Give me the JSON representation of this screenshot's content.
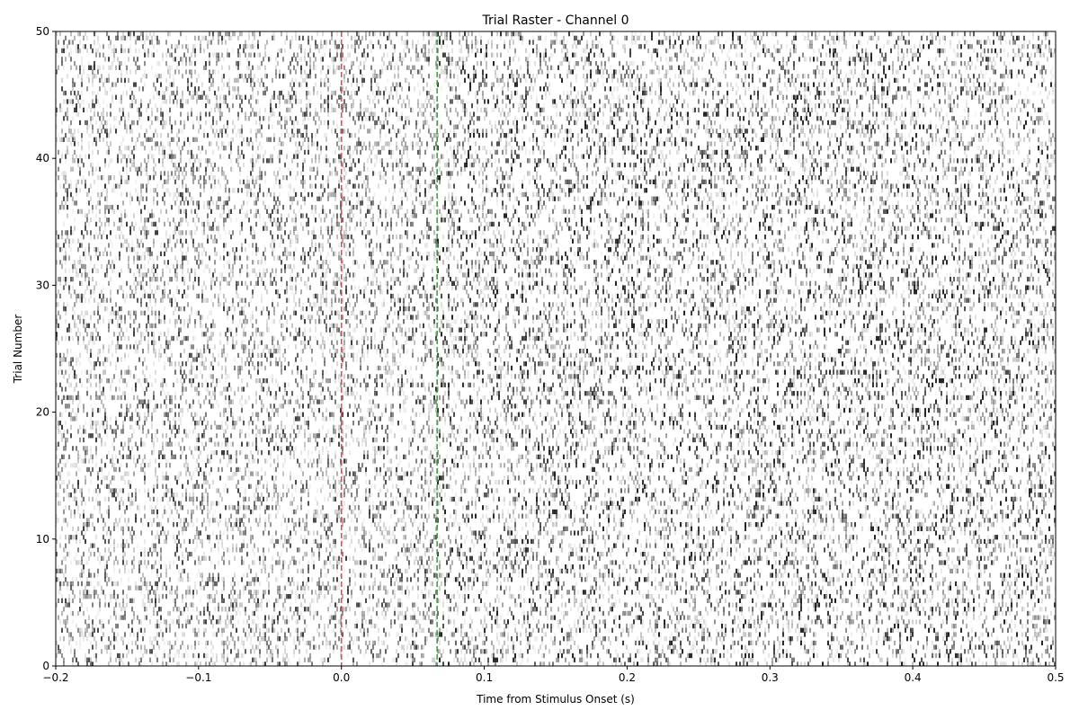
{
  "chart_data": {
    "type": "heatmap",
    "title": "Trial Raster - Channel 0",
    "xlabel": "Time from Stimulus Onset (s)",
    "ylabel": "Trial Number",
    "xlim": [
      -0.2,
      0.5
    ],
    "ylim": [
      0,
      50
    ],
    "x_ticks": [
      -0.2,
      -0.1,
      0.0,
      0.1,
      0.2,
      0.3,
      0.4,
      0.5
    ],
    "x_tick_labels": [
      "−0.2",
      "−0.1",
      "0.0",
      "0.1",
      "0.2",
      "0.3",
      "0.4",
      "0.5"
    ],
    "y_ticks": [
      0,
      10,
      20,
      30,
      40,
      50
    ],
    "y_tick_labels": [
      "0",
      "10",
      "20",
      "30",
      "40",
      "50"
    ],
    "n_trials": 50,
    "grid": false,
    "colormap": "Greys",
    "reference_lines": [
      {
        "x": 0.0,
        "color": "#e03c3c",
        "style": "dashed"
      },
      {
        "x": 0.067,
        "color": "#3a8f3a",
        "style": "dashed"
      }
    ]
  }
}
